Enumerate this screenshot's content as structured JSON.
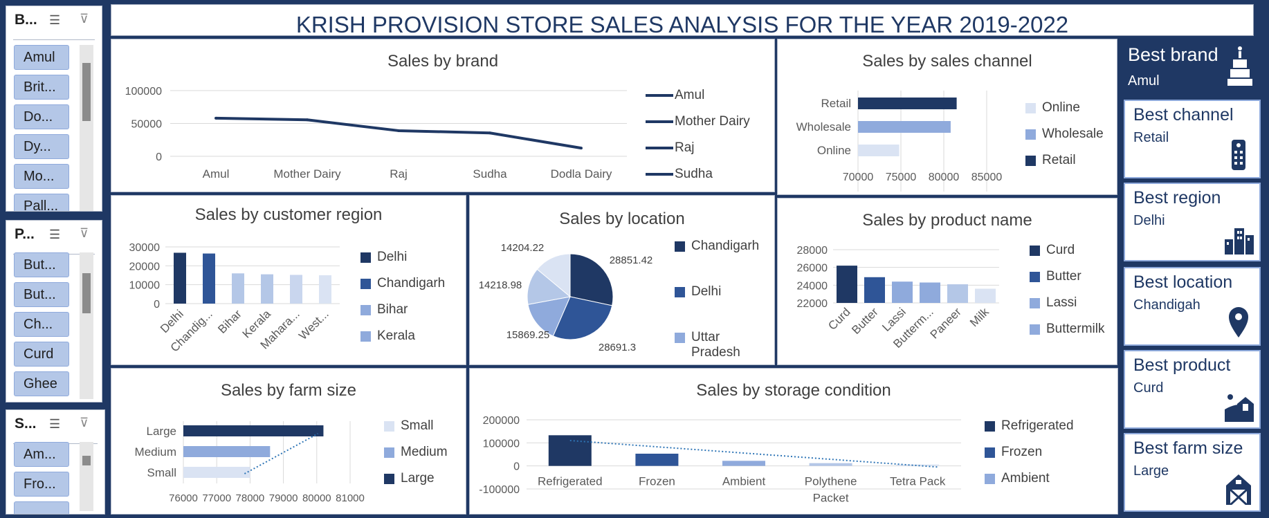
{
  "header": {
    "title": "KRISH PROVISION STORE SALES ANALYSIS FOR THE YEAR 2019-2022"
  },
  "slicers": [
    {
      "title": "B...",
      "items": [
        "Amul",
        "Brit...",
        "Do...",
        "Dy...",
        "Mo...",
        "Pall..."
      ]
    },
    {
      "title": "P...",
      "items": [
        "But...",
        "But...",
        "Ch...",
        "Curd",
        "Ghee"
      ]
    },
    {
      "title": "S...",
      "items": [
        "Am...",
        "Fro..."
      ]
    }
  ],
  "slicer_icons": {
    "multiselect": "multi-select-icon",
    "clear": "clear-filter-icon"
  },
  "charts": {
    "brand": {
      "title": "Sales by brand",
      "categories": [
        "Amul",
        "Mother Dairy",
        "Raj",
        "Sudha",
        "Dodla Dairy"
      ],
      "y_ticks": [
        "100000",
        "50000",
        "0"
      ],
      "legend": [
        "Amul",
        "Mother Dairy",
        "Raj",
        "Sudha"
      ]
    },
    "channel": {
      "title": "Sales by sales channel",
      "categories": [
        "Retail",
        "Wholesale",
        "Online"
      ],
      "x_ticks": [
        "70000",
        "75000",
        "80000",
        "85000"
      ],
      "legend": [
        "Online",
        "Wholesale",
        "Retail"
      ]
    },
    "region": {
      "title": "Sales by customer region",
      "categories": [
        "Delhi",
        "Chandig...",
        "Bihar",
        "Kerala",
        "Mahara...",
        "West..."
      ],
      "y_ticks": [
        "30000",
        "20000",
        "10000",
        "0"
      ],
      "legend": [
        "Delhi",
        "Chandigarh",
        "Bihar",
        "Kerala"
      ]
    },
    "location": {
      "title": "Sales by location",
      "labels": [
        "28851.42",
        "28691.3",
        "15869.25",
        "14218.98",
        "14204.22"
      ],
      "legend": [
        "Chandigarh",
        "Delhi",
        "Uttar Pradesh"
      ]
    },
    "product": {
      "title": "Sales by product name",
      "categories": [
        "Curd",
        "Butter",
        "Lassi",
        "Butterm...",
        "Paneer",
        "Milk"
      ],
      "y_ticks": [
        "28000",
        "26000",
        "24000",
        "22000"
      ],
      "legend": [
        "Curd",
        "Butter",
        "Lassi",
        "Buttermilk"
      ]
    },
    "farm": {
      "title": "Sales by farm size",
      "categories": [
        "Large",
        "Medium",
        "Small"
      ],
      "x_ticks": [
        "76000",
        "77000",
        "78000",
        "79000",
        "80000",
        "81000"
      ],
      "legend": [
        "Small",
        "Medium",
        "Large"
      ]
    },
    "storage": {
      "title": "Sales by storage condition",
      "categories": [
        "Refrigerated",
        "Frozen",
        "Ambient",
        "Polythene Packet",
        "Tetra Pack"
      ],
      "y_ticks": [
        "200000",
        "100000",
        "0",
        "-100000"
      ],
      "legend": [
        "Refrigerated",
        "Frozen",
        "Ambient"
      ]
    }
  },
  "chart_data": [
    {
      "type": "line",
      "title": "Sales by brand",
      "categories": [
        "Amul",
        "Mother Dairy",
        "Raj",
        "Sudha",
        "Dodla Dairy"
      ],
      "values": [
        58000,
        55500,
        39000,
        35500,
        12500
      ],
      "ylim": [
        0,
        100000
      ]
    },
    {
      "type": "bar",
      "title": "Sales by sales channel",
      "orientation": "horizontal",
      "categories": [
        "Retail",
        "Wholesale",
        "Online"
      ],
      "values": [
        81500,
        80800,
        74800
      ],
      "xlim": [
        70000,
        85000
      ]
    },
    {
      "type": "bar",
      "title": "Sales by customer region",
      "categories": [
        "Delhi",
        "Chandig...",
        "Bihar",
        "Kerala",
        "Mahara...",
        "West..."
      ],
      "values": [
        26900,
        26500,
        16000,
        15500,
        15200,
        15000
      ],
      "ylim": [
        0,
        30000
      ]
    },
    {
      "type": "pie",
      "title": "Sales by location",
      "values": [
        28851.42,
        28691.3,
        15869.25,
        14218.98,
        14204.22
      ]
    },
    {
      "type": "bar",
      "title": "Sales by product name",
      "categories": [
        "Curd",
        "Butter",
        "Lassi",
        "Butterm...",
        "Paneer",
        "Milk"
      ],
      "values": [
        26200,
        24900,
        24400,
        24300,
        24100,
        23600
      ],
      "ylim": [
        22000,
        28000
      ]
    },
    {
      "type": "bar",
      "title": "Sales by farm size",
      "orientation": "horizontal",
      "categories": [
        "Large",
        "Medium",
        "Small"
      ],
      "values": [
        80200,
        78600,
        78000
      ],
      "xlim": [
        76000,
        81000
      ]
    },
    {
      "type": "bar",
      "title": "Sales by storage condition",
      "categories": [
        "Refrigerated",
        "Frozen",
        "Ambient",
        "Polythene Packet",
        "Tetra Pack"
      ],
      "values": [
        133000,
        53000,
        22000,
        12000,
        6000
      ],
      "ylim": [
        -100000,
        200000
      ]
    }
  ],
  "kpis": [
    {
      "label": "Best brand",
      "value": "Amul",
      "icon": "cake-icon"
    },
    {
      "label": "Best channel",
      "value": "Retail",
      "icon": "remote-icon"
    },
    {
      "label": "Best region",
      "value": "Delhi",
      "icon": "buildings-icon"
    },
    {
      "label": "Best location",
      "value": "Chandigah",
      "icon": "map-pin-icon"
    },
    {
      "label": "Best product",
      "value": "Curd",
      "icon": "farm-icon"
    },
    {
      "label": "Best farm size",
      "value": "Large",
      "icon": "barn-icon"
    }
  ],
  "colors": {
    "dark": "#1f3864",
    "mid": "#2f5597",
    "light": "#8faadc",
    "lighter": "#b4c7e7",
    "lightest": "#dae3f3"
  }
}
